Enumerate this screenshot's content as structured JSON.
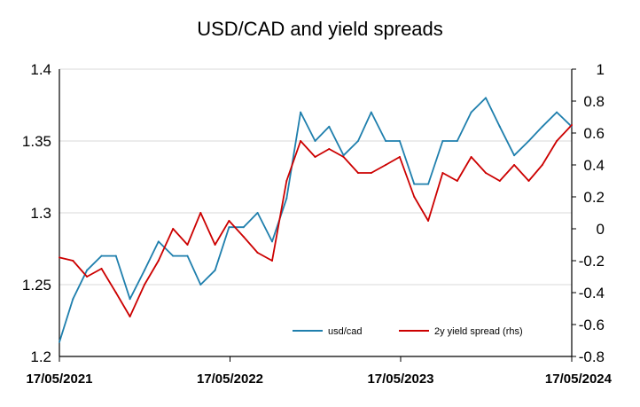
{
  "chart_data": {
    "type": "line",
    "title": "USD/CAD and yield spreads",
    "xlabel": "",
    "ylabel": "",
    "y2label": "",
    "x_ticks": [
      "17/05/2021",
      "17/05/2022",
      "17/05/2023",
      "17/05/2024"
    ],
    "x_domain": [
      "2021-05-17",
      "2024-05-17"
    ],
    "y_left": {
      "range": [
        1.2,
        1.4
      ],
      "ticks": [
        "1.2",
        "1.25",
        "1.3",
        "1.35",
        "1.4"
      ]
    },
    "y_right": {
      "range": [
        -0.8,
        1
      ],
      "ticks": [
        "-0.8",
        "-0.6",
        "-0.4",
        "-0.2",
        "0",
        "0.2",
        "0.4",
        "0.6",
        "0.8",
        "1"
      ]
    },
    "grid": true,
    "legend_position": "bottom-right",
    "series": [
      {
        "name": "usd/cad",
        "axis": "left",
        "color": "#1f7fad",
        "x": [
          "2021-05-17",
          "2021-06-15",
          "2021-07-15",
          "2021-08-15",
          "2021-09-15",
          "2021-10-15",
          "2021-11-15",
          "2021-12-15",
          "2022-01-15",
          "2022-02-15",
          "2022-03-15",
          "2022-04-15",
          "2022-05-15",
          "2022-06-15",
          "2022-07-15",
          "2022-08-15",
          "2022-09-15",
          "2022-10-15",
          "2022-11-15",
          "2022-12-15",
          "2023-01-15",
          "2023-02-15",
          "2023-03-15",
          "2023-04-15",
          "2023-05-15",
          "2023-06-15",
          "2023-07-15",
          "2023-08-15",
          "2023-09-15",
          "2023-10-15",
          "2023-11-15",
          "2023-12-15",
          "2024-01-15",
          "2024-02-15",
          "2024-03-15",
          "2024-04-15",
          "2024-05-17"
        ],
        "values": [
          1.21,
          1.24,
          1.26,
          1.27,
          1.27,
          1.24,
          1.26,
          1.28,
          1.27,
          1.27,
          1.25,
          1.26,
          1.29,
          1.29,
          1.3,
          1.28,
          1.31,
          1.37,
          1.35,
          1.36,
          1.34,
          1.35,
          1.37,
          1.35,
          1.35,
          1.32,
          1.32,
          1.35,
          1.35,
          1.37,
          1.38,
          1.36,
          1.34,
          1.35,
          1.36,
          1.37,
          1.36
        ]
      },
      {
        "name": "2y yield spread (rhs)",
        "axis": "right",
        "color": "#cc0000",
        "x": [
          "2021-05-17",
          "2021-06-15",
          "2021-07-15",
          "2021-08-15",
          "2021-09-15",
          "2021-10-15",
          "2021-11-15",
          "2021-12-15",
          "2022-01-15",
          "2022-02-15",
          "2022-03-15",
          "2022-04-15",
          "2022-05-15",
          "2022-06-15",
          "2022-07-15",
          "2022-08-15",
          "2022-09-15",
          "2022-10-15",
          "2022-11-15",
          "2022-12-15",
          "2023-01-15",
          "2023-02-15",
          "2023-03-15",
          "2023-04-15",
          "2023-05-15",
          "2023-06-15",
          "2023-07-15",
          "2023-08-15",
          "2023-09-15",
          "2023-10-15",
          "2023-11-15",
          "2023-12-15",
          "2024-01-15",
          "2024-02-15",
          "2024-03-15",
          "2024-04-15",
          "2024-05-17"
        ],
        "values": [
          -0.18,
          -0.2,
          -0.3,
          -0.25,
          -0.4,
          -0.55,
          -0.35,
          -0.2,
          0.0,
          -0.1,
          0.1,
          -0.1,
          0.05,
          -0.05,
          -0.15,
          -0.2,
          0.3,
          0.55,
          0.45,
          0.5,
          0.45,
          0.35,
          0.35,
          0.4,
          0.45,
          0.2,
          0.05,
          0.35,
          0.3,
          0.45,
          0.35,
          0.3,
          0.4,
          0.3,
          0.4,
          0.55,
          0.65
        ]
      }
    ]
  }
}
